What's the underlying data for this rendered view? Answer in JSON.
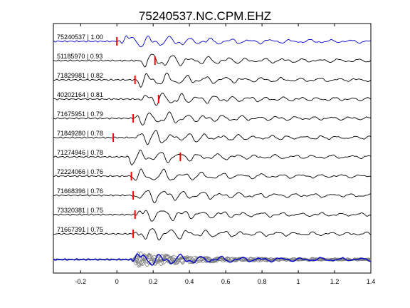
{
  "chart_data": {
    "type": "line",
    "title": "75240537.NC.CPM.EHZ",
    "xlabel": "",
    "ylabel": "",
    "xlim": [
      -0.35,
      1.4
    ],
    "x_ticks": [
      -0.2,
      0,
      0.2,
      0.4,
      0.6,
      0.8,
      1,
      1.2,
      1.4
    ],
    "x_tick_labels": [
      "-0.2",
      "0",
      "0.2",
      "0.4",
      "0.6",
      "0.8",
      "1",
      "1.2",
      "1.4"
    ],
    "grid": false,
    "colors": {
      "reference": "#0000cc",
      "trace": "#000000",
      "pick": "#ff0000",
      "overlay": "#808080"
    },
    "traces": [
      {
        "id": "75240537",
        "cc": "1.00",
        "label": "75240537 | 1.00",
        "pick": 0.0,
        "onset": 0.02,
        "color": "#0000cc"
      },
      {
        "id": "51185970",
        "cc": "0.93",
        "label": "51185970 | 0.93",
        "pick": 0.21,
        "onset": 0.13,
        "color": "#000000"
      },
      {
        "id": "71829981",
        "cc": "0.82",
        "label": "71829981 | 0.82",
        "pick": 0.1,
        "onset": 0.1,
        "color": "#000000"
      },
      {
        "id": "40202164",
        "cc": "0.81",
        "label": "40202164 | 0.81",
        "pick": 0.23,
        "onset": 0.12,
        "color": "#000000"
      },
      {
        "id": "71675951",
        "cc": "0.79",
        "label": "71675951 | 0.79",
        "pick": 0.09,
        "onset": 0.09,
        "color": "#000000"
      },
      {
        "id": "71849280",
        "cc": "0.78",
        "label": "71849280 | 0.78",
        "pick": -0.02,
        "onset": 0.09,
        "color": "#000000"
      },
      {
        "id": "71274946",
        "cc": "0.78",
        "label": "71274946 | 0.78",
        "pick": 0.35,
        "onset": 0.05,
        "color": "#000000"
      },
      {
        "id": "72224066",
        "cc": "0.76",
        "label": "72224066 | 0.76",
        "pick": 0.08,
        "onset": 0.08,
        "color": "#000000"
      },
      {
        "id": "71668396",
        "cc": "0.76",
        "label": "71668396 | 0.76",
        "pick": 0.09,
        "onset": 0.09,
        "color": "#000000"
      },
      {
        "id": "73320381",
        "cc": "0.75",
        "label": "73320381 | 0.75",
        "pick": 0.1,
        "onset": 0.1,
        "color": "#000000"
      },
      {
        "id": "71667391",
        "cc": "0.75",
        "label": "71667391 | 0.75",
        "pick": 0.09,
        "onset": 0.09,
        "color": "#000000"
      }
    ],
    "stack": {
      "onset": 0.08,
      "reference_color": "#0000cc",
      "overlay_color": "#808080"
    }
  }
}
